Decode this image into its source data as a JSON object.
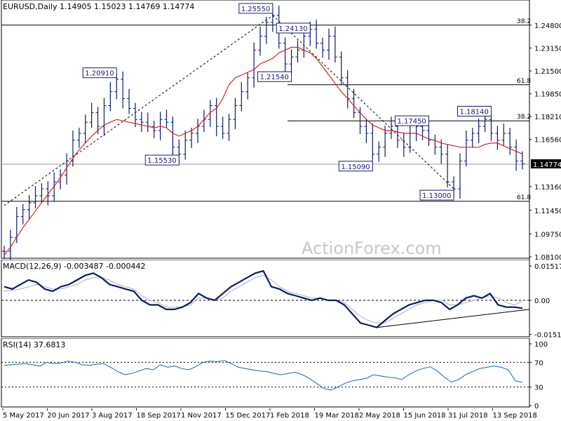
{
  "chart_data": {
    "type": "line",
    "price_panel": {
      "title": "EURUSD,Daily  1.14905 1.15023 1.14769 1.14774",
      "y_ticks": [
        "1.24800",
        "1.23150",
        "1.21500",
        "1.19850",
        "1.18210",
        "1.16560",
        "1.14774",
        "1.13160",
        "1.11450",
        "1.09750",
        "1.08100"
      ],
      "current_price": "1.14774",
      "ylim": [
        1.081,
        1.258
      ],
      "close_series": [
        1.085,
        1.095,
        1.11,
        1.115,
        1.12,
        1.125,
        1.13,
        1.125,
        1.135,
        1.14,
        1.15,
        1.165,
        1.17,
        1.178,
        1.185,
        1.175,
        1.19,
        1.2,
        1.209,
        1.195,
        1.188,
        1.18,
        1.178,
        1.175,
        1.172,
        1.18,
        1.178,
        1.16,
        1.155,
        1.165,
        1.17,
        1.175,
        1.18,
        1.19,
        1.175,
        1.17,
        1.18,
        1.19,
        1.2,
        1.21,
        1.23,
        1.24,
        1.25,
        1.255,
        1.235,
        1.22,
        1.225,
        1.23,
        1.24,
        1.245,
        1.235,
        1.23,
        1.24,
        1.225,
        1.21,
        1.195,
        1.185,
        1.175,
        1.17,
        1.155,
        1.16,
        1.17,
        1.175,
        1.165,
        1.16,
        1.17,
        1.175,
        1.172,
        1.165,
        1.16,
        1.155,
        1.135,
        1.13,
        1.15,
        1.165,
        1.17,
        1.175,
        1.18,
        1.17,
        1.165,
        1.17,
        1.16,
        1.15,
        1.148
      ],
      "ma_series": [
        1.082,
        1.088,
        1.095,
        1.102,
        1.108,
        1.114,
        1.12,
        1.126,
        1.132,
        1.138,
        1.145,
        1.152,
        1.158,
        1.163,
        1.168,
        1.172,
        1.176,
        1.178,
        1.18,
        1.179,
        1.178,
        1.177,
        1.176,
        1.175,
        1.174,
        1.175,
        1.174,
        1.17,
        1.168,
        1.17,
        1.172,
        1.175,
        1.18,
        1.185,
        1.188,
        1.195,
        1.205,
        1.21,
        1.212,
        1.214,
        1.216,
        1.22,
        1.222,
        1.224,
        1.228,
        1.23,
        1.232,
        1.232,
        1.23,
        1.228,
        1.224,
        1.218,
        1.212,
        1.206,
        1.2,
        1.195,
        1.19,
        1.185,
        1.18,
        1.176,
        1.174,
        1.172,
        1.172,
        1.171,
        1.17,
        1.17,
        1.17,
        1.168,
        1.166,
        1.165,
        1.163,
        1.162,
        1.161,
        1.16,
        1.16,
        1.16,
        1.16,
        1.162,
        1.163,
        1.163,
        1.161,
        1.159,
        1.157,
        1.155
      ],
      "pivot_labels": [
        {
          "text": "1.25550",
          "i": 43,
          "v": 1.2555,
          "pos": "above"
        },
        {
          "text": "1.24130",
          "i": 49,
          "v": 1.2413,
          "pos": "above"
        },
        {
          "text": "1.21540",
          "i": 46,
          "v": 1.2154,
          "pos": "below"
        },
        {
          "text": "1.20910",
          "i": 18,
          "v": 1.2091,
          "pos": "above"
        },
        {
          "text": "1.15530",
          "i": 28,
          "v": 1.1553,
          "pos": "below"
        },
        {
          "text": "1.15090",
          "i": 59,
          "v": 1.1509,
          "pos": "below"
        },
        {
          "text": "1.17450",
          "i": 68,
          "v": 1.1745,
          "pos": "above"
        },
        {
          "text": "1.18140",
          "i": 78,
          "v": 1.1814,
          "pos": "above"
        },
        {
          "text": "1.13000",
          "i": 72,
          "v": 1.13,
          "pos": "below"
        }
      ],
      "fib_levels": [
        {
          "label": "38.2",
          "v": 1.248
        },
        {
          "label": "61.8",
          "v": 1.205
        },
        {
          "label": "38.2",
          "v": 1.179
        },
        {
          "label": "61.8",
          "v": 1.121
        }
      ]
    },
    "macd_panel": {
      "title": "MACD(12,26,9) -0.003487 -0.000442",
      "y_ticks": [
        "0.015176",
        "0.00",
        "-0.015105"
      ],
      "ylim": [
        -0.0155,
        0.0155
      ],
      "macd_series": [
        0.006,
        0.005,
        0.007,
        0.009,
        0.008,
        0.005,
        0.004,
        0.006,
        0.007,
        0.009,
        0.011,
        0.012,
        0.01,
        0.007,
        0.006,
        0.005,
        0.004,
        0.0,
        -0.002,
        -0.002,
        -0.004,
        -0.004,
        -0.003,
        -0.001,
        0.003,
        0.001,
        0.0,
        0.003,
        0.006,
        0.008,
        0.01,
        0.012,
        0.013,
        0.006,
        0.005,
        0.003,
        0.002,
        0.001,
        0.0,
        0.001,
        0.0,
        0.0,
        -0.002,
        -0.006,
        -0.01,
        -0.011,
        -0.012,
        -0.009,
        -0.006,
        -0.004,
        -0.002,
        -0.001,
        0.0,
        0.0,
        -0.001,
        -0.004,
        -0.002,
        0.001,
        0.002,
        0.001,
        0.003,
        -0.002,
        -0.003,
        -0.003,
        -0.0035
      ],
      "signal_series": [
        0.004,
        0.0045,
        0.005,
        0.006,
        0.007,
        0.006,
        0.005,
        0.005,
        0.006,
        0.007,
        0.009,
        0.01,
        0.01,
        0.009,
        0.007,
        0.006,
        0.005,
        0.002,
        0.0,
        -0.001,
        -0.003,
        -0.003,
        -0.003,
        -0.002,
        0.001,
        0.001,
        0.0,
        0.001,
        0.004,
        0.006,
        0.008,
        0.01,
        0.011,
        0.009,
        0.006,
        0.004,
        0.003,
        0.002,
        0.001,
        0.001,
        0.0,
        0.0,
        -0.001,
        -0.004,
        -0.007,
        -0.009,
        -0.01,
        -0.01,
        -0.008,
        -0.006,
        -0.004,
        -0.002,
        -0.001,
        0.0,
        0.0,
        -0.002,
        -0.002,
        -0.001,
        0.0,
        0.001,
        0.002,
        0.001,
        -0.001,
        -0.002,
        -0.0004
      ]
    },
    "rsi_panel": {
      "title": "RSI(14) 37.6813",
      "y_ticks": [
        "100",
        "70",
        "30",
        "0"
      ],
      "ylim": [
        0,
        100
      ],
      "rsi_series": [
        65,
        66,
        67,
        68,
        66,
        64,
        70,
        68,
        69,
        72,
        70,
        66,
        65,
        67,
        68,
        62,
        55,
        50,
        52,
        56,
        60,
        58,
        66,
        62,
        64,
        60,
        58,
        63,
        70,
        72,
        71,
        73,
        68,
        62,
        60,
        58,
        56,
        55,
        52,
        50,
        52,
        54,
        50,
        44,
        36,
        28,
        25,
        30,
        36,
        40,
        42,
        44,
        50,
        48,
        46,
        45,
        42,
        50,
        56,
        60,
        63,
        56,
        46,
        38,
        42,
        50,
        55,
        60,
        62,
        64,
        62,
        58,
        40,
        37.7
      ]
    },
    "x_ticks": [
      "5 May 2017",
      "20 Jun 2017",
      "3 Aug 2017",
      "18 Sep 2017",
      "1 Nov 2017",
      "15 Dec 2017",
      "1 Feb 2018",
      "19 Mar 2018",
      "2 May 2018",
      "15 Jun 2018",
      "31 Jul 2018",
      "13 Sep 2018"
    ],
    "colors": {
      "price": "#0b1a6b",
      "ma": "#e02020",
      "macd": "#0b1a6b",
      "signal": "#b0b0b0",
      "rsi": "#1a5fc8",
      "grid": "#000000",
      "trend": "#000000"
    }
  },
  "watermark": "ActionForex.com"
}
